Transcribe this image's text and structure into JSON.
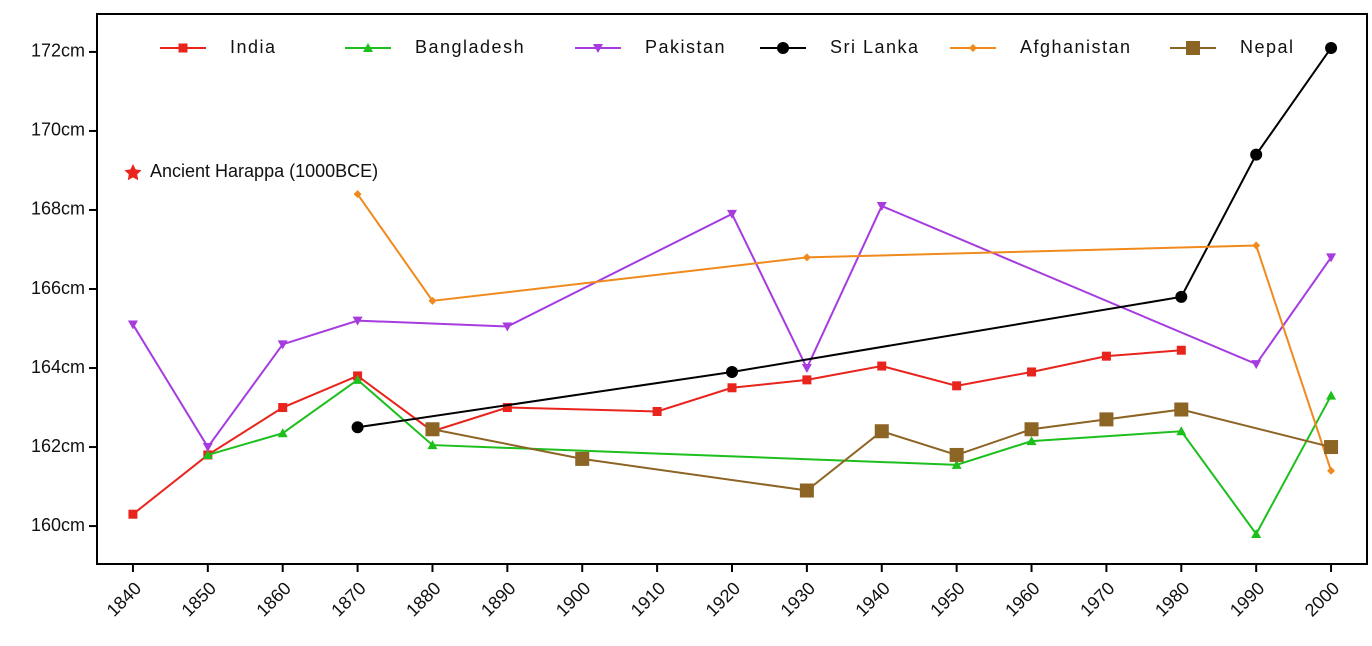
{
  "chart_data": {
    "type": "line",
    "annotation": "Ancient Harappa (1000BCE)",
    "annotation_color": "#e8241c",
    "xlim": [
      1835.2,
      2004.8
    ],
    "xticks": [
      1840,
      1850,
      1860,
      1870,
      1880,
      1890,
      1900,
      1910,
      1920,
      1930,
      1940,
      1950,
      1960,
      1970,
      1980,
      1990,
      2000
    ],
    "ylim": [
      159.04,
      172.96
    ],
    "yticks": [
      {
        "value": 160,
        "label": "160cm"
      },
      {
        "value": 162,
        "label": "162cm"
      },
      {
        "value": 164,
        "label": "164cm"
      },
      {
        "value": 166,
        "label": "166cm"
      },
      {
        "value": 168,
        "label": "168cm"
      },
      {
        "value": 170,
        "label": "170cm"
      },
      {
        "value": 172,
        "label": "172cm"
      }
    ],
    "series": [
      {
        "name": "India",
        "color": "#e8241c",
        "marker": "square",
        "x": [
          1840,
          1850,
          1860,
          1870,
          1880,
          1890,
          1910,
          1920,
          1930,
          1940,
          1950,
          1960,
          1970,
          1980
        ],
        "values": [
          160.3,
          161.8,
          163.0,
          163.8,
          162.4,
          163.0,
          162.9,
          163.5,
          163.7,
          164.05,
          163.55,
          163.9,
          164.3,
          164.45
        ]
      },
      {
        "name": "Bangladesh",
        "color": "#1cbf1c",
        "marker": "triangle-up",
        "x": [
          1850,
          1860,
          1870,
          1880,
          1950,
          1960,
          1980,
          1990,
          2000
        ],
        "values": [
          161.8,
          162.35,
          163.7,
          162.05,
          161.55,
          162.15,
          162.4,
          159.8,
          163.3
        ]
      },
      {
        "name": "Pakistan",
        "color": "#a63be0",
        "marker": "triangle-down",
        "x": [
          1840,
          1850,
          1860,
          1870,
          1890,
          1920,
          1930,
          1940,
          1990,
          2000
        ],
        "values": [
          165.1,
          162.0,
          164.6,
          165.2,
          165.05,
          167.9,
          164.0,
          168.1,
          164.1,
          166.8
        ]
      },
      {
        "name": "Sri Lanka",
        "color": "#000000",
        "marker": "circle",
        "x": [
          1870,
          1920,
          1980,
          1990,
          2000
        ],
        "values": [
          162.5,
          163.9,
          165.8,
          169.4,
          172.1
        ]
      },
      {
        "name": "Afghanistan",
        "color": "#f08a1d",
        "marker": "diamond",
        "x": [
          1870,
          1880,
          1930,
          1990,
          2000
        ],
        "values": [
          168.4,
          165.7,
          166.8,
          167.1,
          161.4
        ]
      },
      {
        "name": "Nepal",
        "color": "#8c6424",
        "marker": "big-square",
        "x": [
          1880,
          1900,
          1930,
          1940,
          1950,
          1960,
          1970,
          1980,
          2000
        ],
        "values": [
          162.45,
          161.7,
          160.9,
          162.4,
          161.8,
          162.45,
          162.7,
          162.95,
          162.0
        ]
      }
    ]
  }
}
